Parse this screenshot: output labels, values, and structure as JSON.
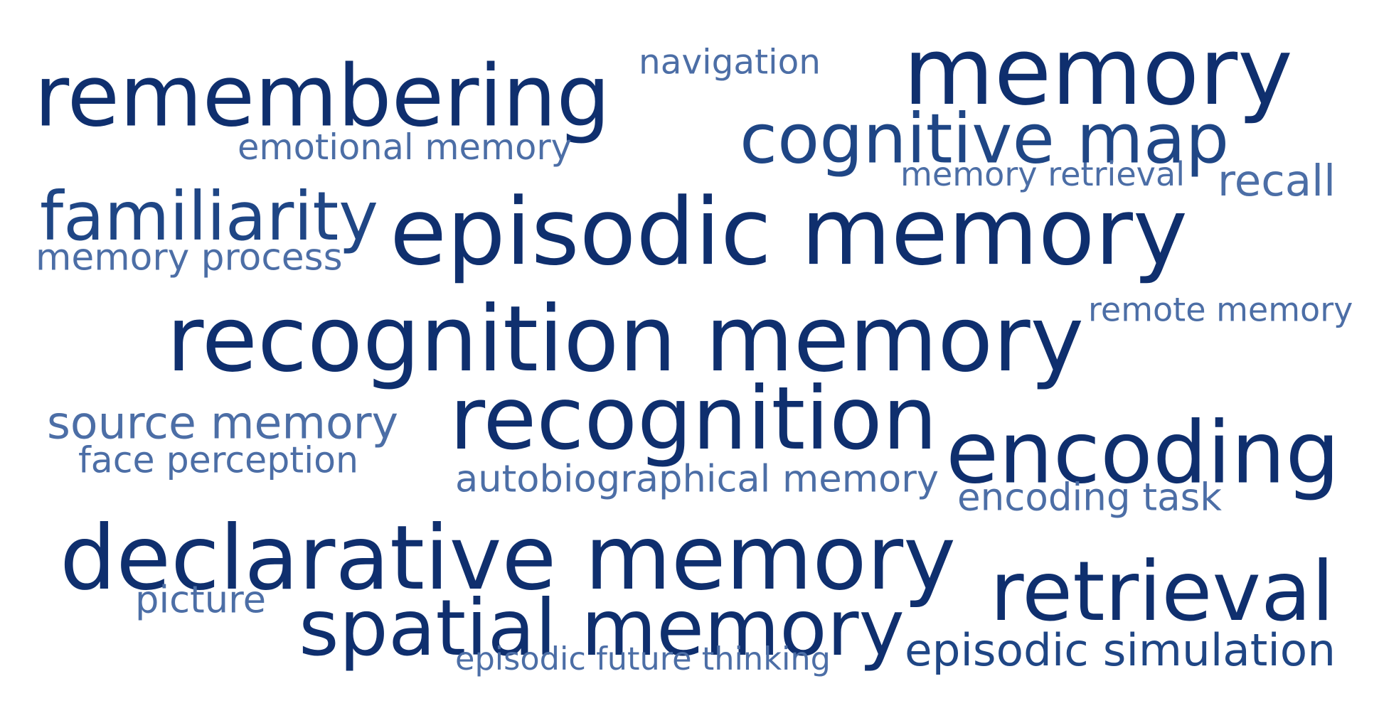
{
  "words": {
    "remembering": "remembering",
    "navigation": "navigation",
    "memory": "memory",
    "emotional_memory": "emotional memory",
    "cognitive_map": "cognitive map",
    "memory_retrieval": "memory retrieval",
    "recall": "recall",
    "familiarity": "familiarity",
    "episodic_memory": "episodic memory",
    "memory_process": "memory process",
    "recognition_memory": "recognition memory",
    "remote_memory": "remote memory",
    "recognition": "recognition",
    "source_memory": "source memory",
    "face_perception": "face perception",
    "encoding": "encoding",
    "autobiographical_memory": "autobiographical memory",
    "encoding_task": "encoding task",
    "declarative_memory": "declarative memory",
    "picture": "picture",
    "spatial_memory": "spatial memory",
    "retrieval": "retrieval",
    "episodic_simulation": "episodic simulation",
    "episodic_future_thinking": "episodic future thinking"
  },
  "colors": {
    "darkest": "#0f2f6e",
    "dark": "#1f4685",
    "light": "#4c6ea6",
    "background": "#ffffff"
  }
}
